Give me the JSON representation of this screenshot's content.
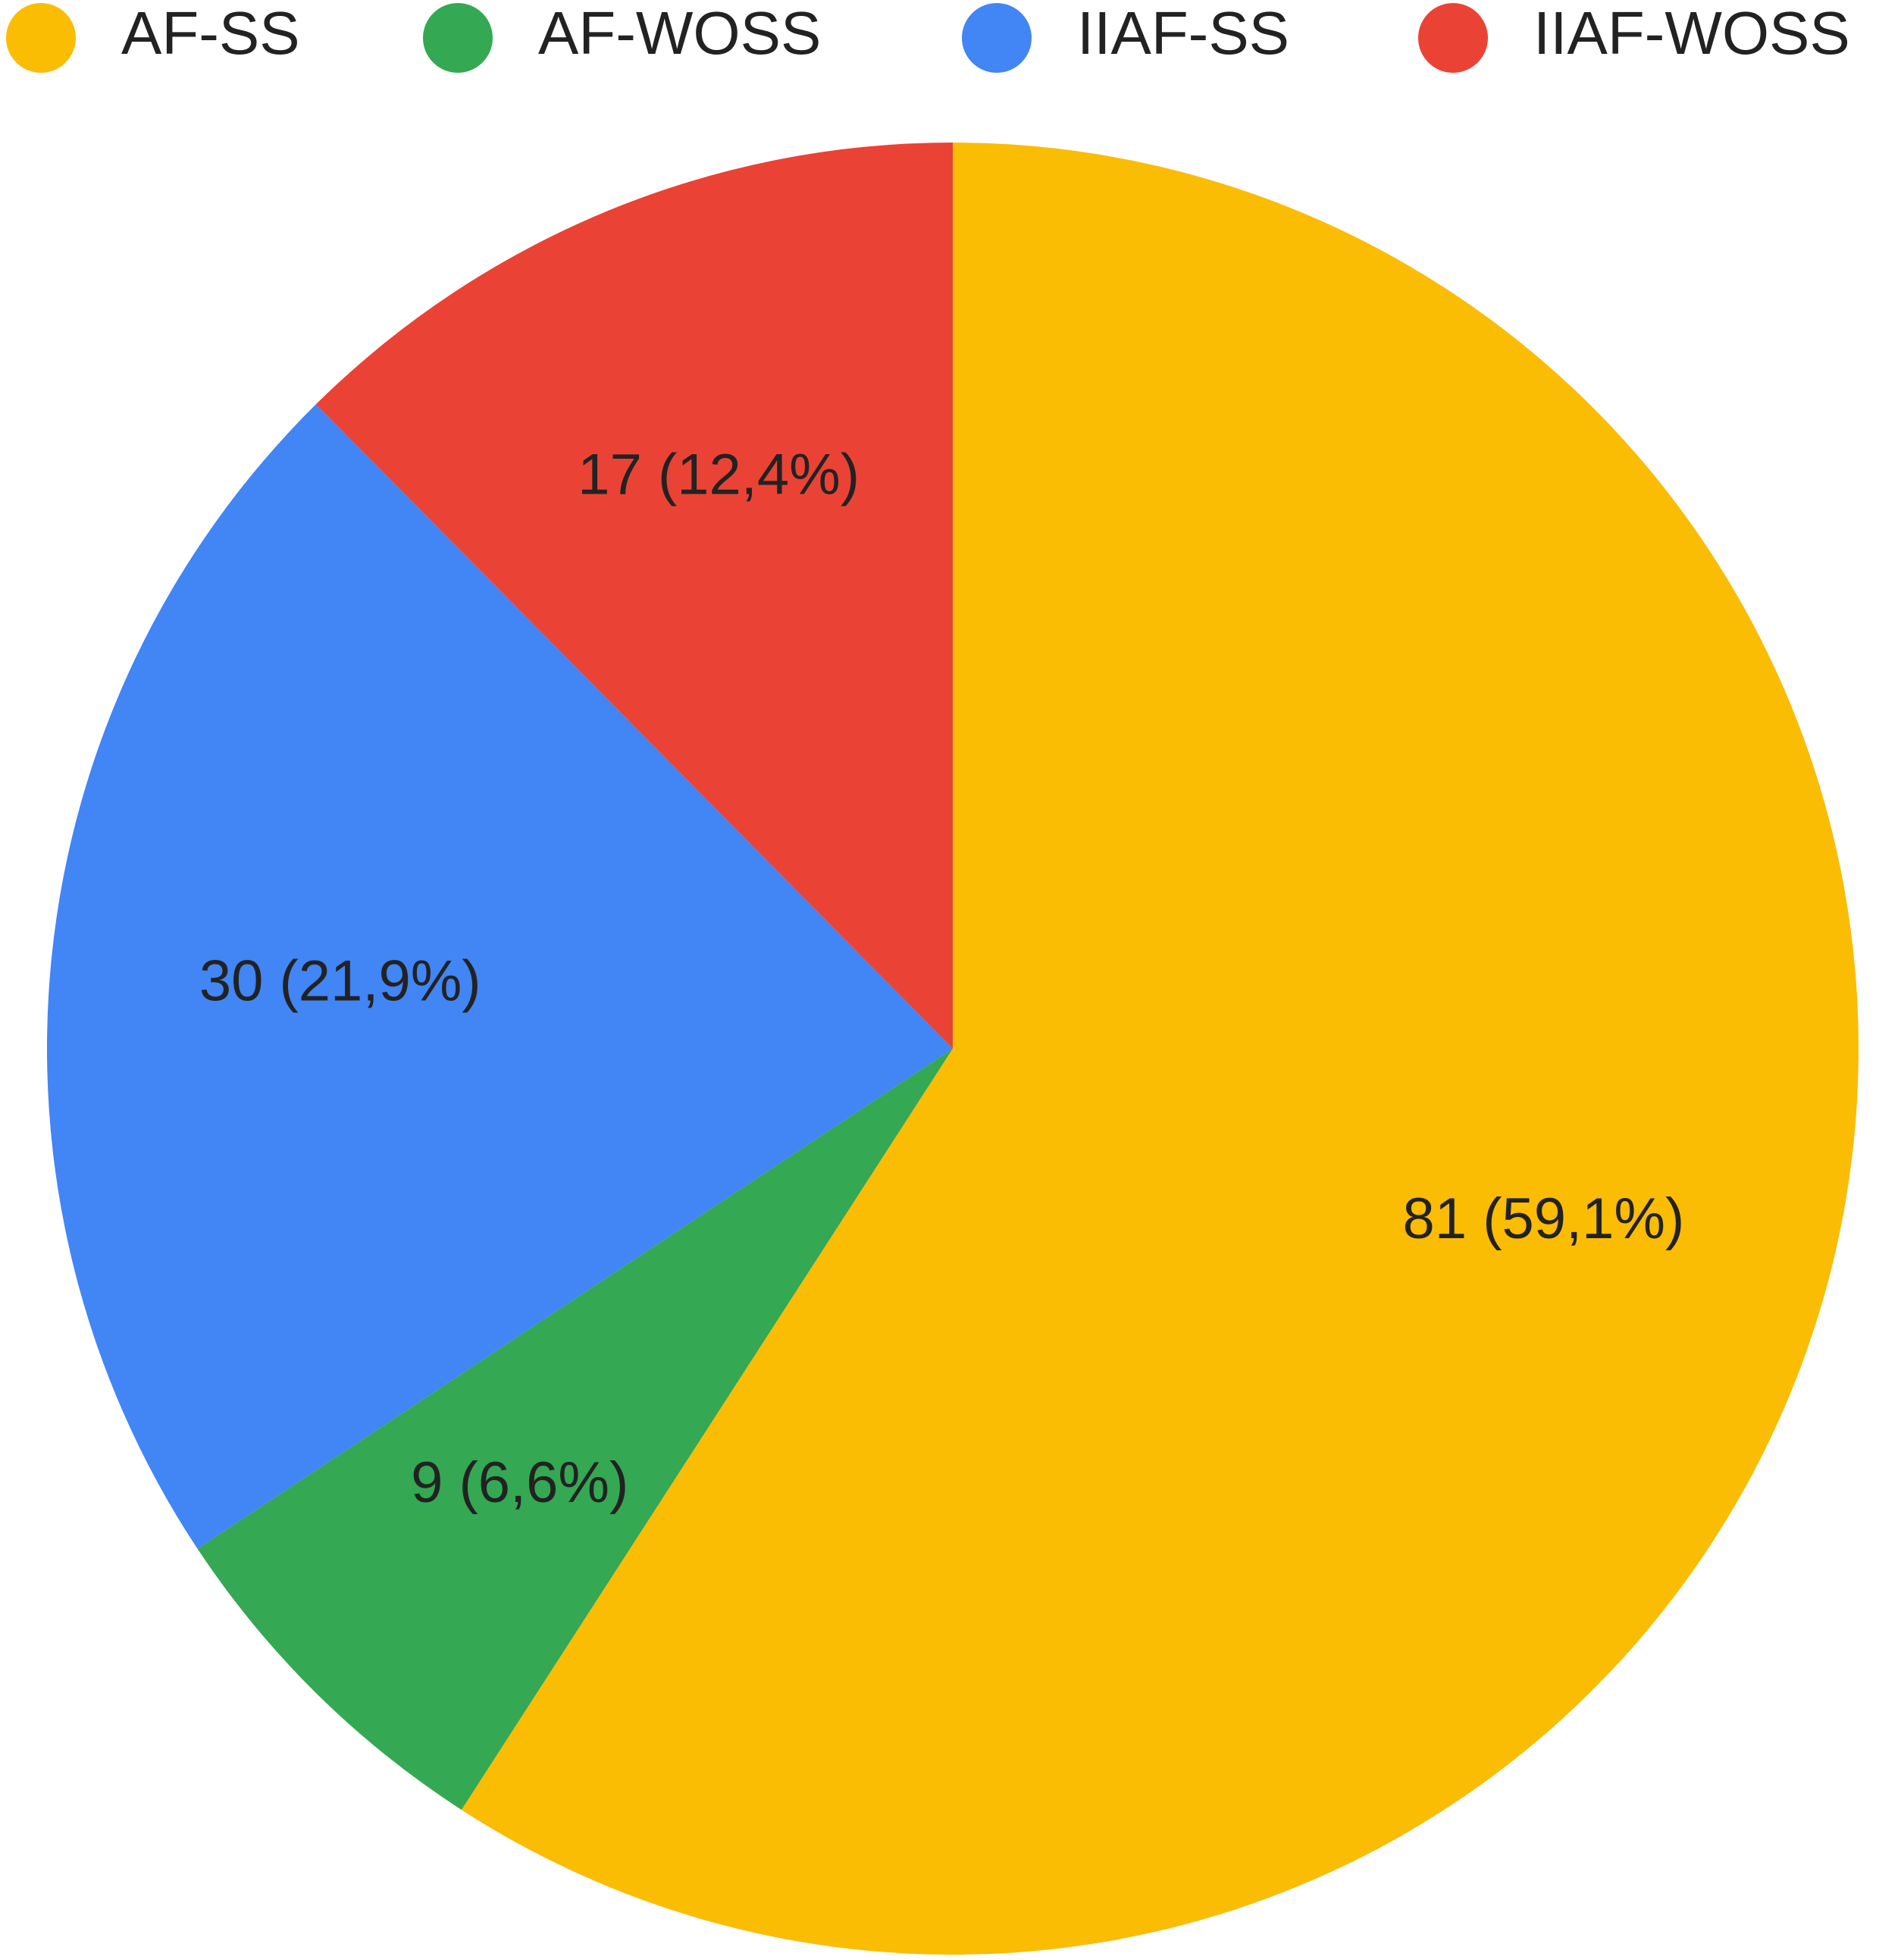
{
  "chart_data": {
    "type": "pie",
    "categories": [
      "AF-SS",
      "AF-WOSS",
      "IIAF-SS",
      "IIAF-WOSS"
    ],
    "values": [
      81,
      9,
      30,
      17
    ],
    "value_labels": [
      "81 (59,1%)",
      "9 (6,6%)",
      "30 (21,9%)",
      "17 (12,4%)"
    ],
    "colors": [
      "#fbbc04",
      "#34a853",
      "#4285f4",
      "#ea4335"
    ],
    "legend": "top"
  }
}
